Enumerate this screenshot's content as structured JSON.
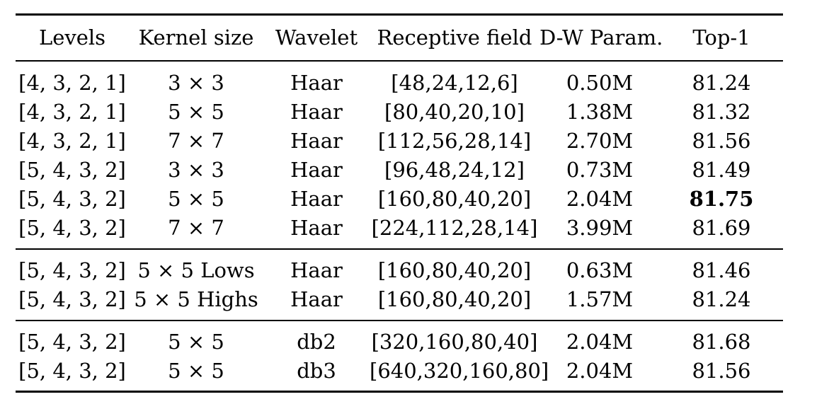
{
  "table": {
    "headers": {
      "levels": "Levels",
      "kernel_size": "Kernel size",
      "wavelet": "Wavelet",
      "receptive_field": "Receptive field",
      "dw_param": "D-W Param.",
      "top1": "Top-1"
    },
    "group1": [
      {
        "levels": "[4, 3, 2, 1]",
        "kernel": "3 × 3",
        "wavelet": "Haar",
        "rf": "[48,24,12,6]",
        "dw": "0.50M",
        "top1": "81.24"
      },
      {
        "levels": "[4, 3, 2, 1]",
        "kernel": "5 × 5",
        "wavelet": "Haar",
        "rf": "[80,40,20,10]",
        "dw": "1.38M",
        "top1": "81.32"
      },
      {
        "levels": "[4, 3, 2, 1]",
        "kernel": "7 × 7",
        "wavelet": "Haar",
        "rf": "[112,56,28,14]",
        "dw": "2.70M",
        "top1": "81.56"
      },
      {
        "levels": "[5, 4, 3, 2]",
        "kernel": "3 × 3",
        "wavelet": "Haar",
        "rf": "[96,48,24,12]",
        "dw": "0.73M",
        "top1": "81.49"
      },
      {
        "levels": "[5, 4, 3, 2]",
        "kernel": "5 × 5",
        "wavelet": "Haar",
        "rf": "[160,80,40,20]",
        "dw": "2.04M",
        "top1": "81.75"
      },
      {
        "levels": "[5, 4, 3, 2]",
        "kernel": "7 × 7",
        "wavelet": "Haar",
        "rf": "[224,112,28,14]",
        "dw": "3.99M",
        "top1": "81.69"
      }
    ],
    "group2": [
      {
        "levels": "[5, 4, 3, 2]",
        "kernel": "5 × 5 Lows",
        "wavelet": "Haar",
        "rf": "[160,80,40,20]",
        "dw": "0.63M",
        "top1": "81.46"
      },
      {
        "levels": "[5, 4, 3, 2]",
        "kernel": "5 × 5 Highs",
        "wavelet": "Haar",
        "rf": "[160,80,40,20]",
        "dw": "1.57M",
        "top1": "81.24"
      }
    ],
    "group3": [
      {
        "levels": "[5, 4, 3, 2]",
        "kernel": "5 × 5",
        "wavelet": "db2",
        "rf": "[320,160,80,40]",
        "dw": "2.04M",
        "top1": "81.68"
      },
      {
        "levels": "[5, 4, 3, 2]",
        "kernel": "5 × 5",
        "wavelet": "db3",
        "rf": "[640,320,160,80]",
        "dw": "2.04M",
        "top1": "81.56"
      }
    ]
  }
}
